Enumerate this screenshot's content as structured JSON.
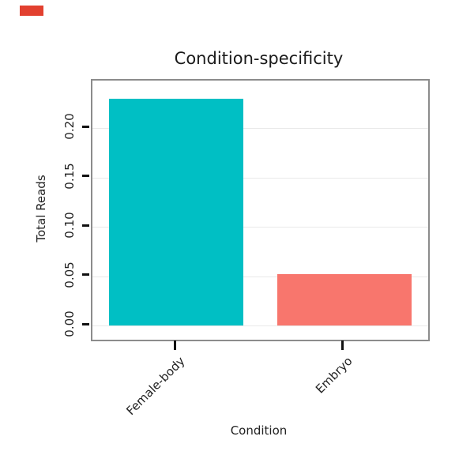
{
  "corner_swatch_color": "#e2402f",
  "chart_data": {
    "type": "bar",
    "title": "Condition-specificity",
    "xlabel": "Condition",
    "ylabel": "Total Reads",
    "categories": [
      "Female-body",
      "Embryo"
    ],
    "values": [
      0.23,
      0.052
    ],
    "bar_colors": [
      "#00BFC4",
      "#F8766D"
    ],
    "yticks": [
      0.0,
      0.05,
      0.1,
      0.15,
      0.2
    ],
    "ytick_labels": [
      "0.00",
      "0.05",
      "0.10",
      "0.15",
      "0.20"
    ],
    "ylim": [
      0,
      0.248
    ],
    "grid": true,
    "legend_position": "none"
  }
}
